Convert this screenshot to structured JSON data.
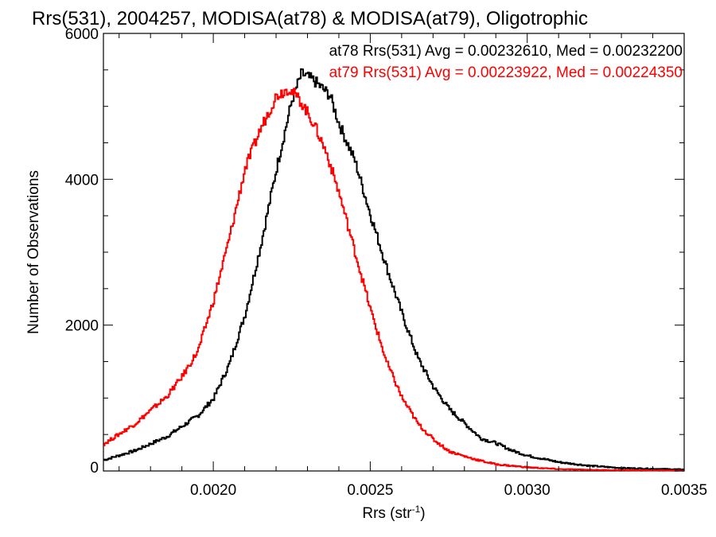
{
  "chart_data": {
    "type": "line",
    "title": "Rrs(531), 2004257, MODISA(at78) & MODISA(at79), Oligotrophic",
    "xlabel": "Rrs (str",
    "xlabel_sup": "-1",
    "xlabel_end": ")",
    "ylabel": "Number of Observations",
    "xlim": [
      0.00165,
      0.0035
    ],
    "ylim": [
      0,
      6000
    ],
    "x_ticks": [
      0.002,
      0.0025,
      0.003,
      0.0035
    ],
    "x_tick_labels": [
      "0.0020",
      "0.0025",
      "0.0030",
      "0.0035"
    ],
    "y_ticks": [
      0,
      2000,
      4000,
      6000
    ],
    "y_tick_labels": [
      "0",
      "2000",
      "4000",
      "6000"
    ],
    "grid": false,
    "legend_placement": "top-right",
    "legend": [
      "at78 Rrs(531) Avg = 0.00232610, Med = 0.00232200",
      "at79 Rrs(531) Avg = 0.00223922, Med = 0.00224350"
    ],
    "series": [
      {
        "color": "#000000",
        "x": [
          0.00165,
          0.00175,
          0.00185,
          0.00195,
          0.002,
          0.00205,
          0.0021,
          0.00215,
          0.0022,
          0.00225,
          0.00228,
          0.00232,
          0.00237,
          0.0024,
          0.00245,
          0.0025,
          0.00255,
          0.0026,
          0.00265,
          0.0027,
          0.00275,
          0.0028,
          0.00285,
          0.0029,
          0.00295,
          0.003,
          0.0031,
          0.0032,
          0.0033,
          0.0034,
          0.0035
        ],
        "y": [
          150,
          280,
          470,
          760,
          1000,
          1470,
          2150,
          3100,
          4150,
          5100,
          5450,
          5350,
          5150,
          4750,
          4250,
          3500,
          2800,
          2150,
          1550,
          1150,
          850,
          650,
          450,
          380,
          280,
          210,
          120,
          70,
          40,
          30,
          20
        ]
      },
      {
        "color": "#ff0000",
        "x": [
          0.00165,
          0.00175,
          0.00185,
          0.0019,
          0.00195,
          0.002,
          0.00205,
          0.0021,
          0.00215,
          0.0022,
          0.00224,
          0.00228,
          0.00232,
          0.00236,
          0.0024,
          0.00245,
          0.0025,
          0.00255,
          0.0026,
          0.00265,
          0.0027,
          0.00275,
          0.0028,
          0.00285,
          0.0029,
          0.003,
          0.0031,
          0.0032,
          0.0033,
          0.0035
        ],
        "y": [
          370,
          650,
          1020,
          1300,
          1650,
          2350,
          3200,
          4150,
          4700,
          5150,
          5250,
          5050,
          4750,
          4350,
          3800,
          3000,
          2200,
          1500,
          1000,
          650,
          430,
          270,
          200,
          140,
          90,
          50,
          25,
          15,
          10,
          5
        ]
      }
    ]
  }
}
